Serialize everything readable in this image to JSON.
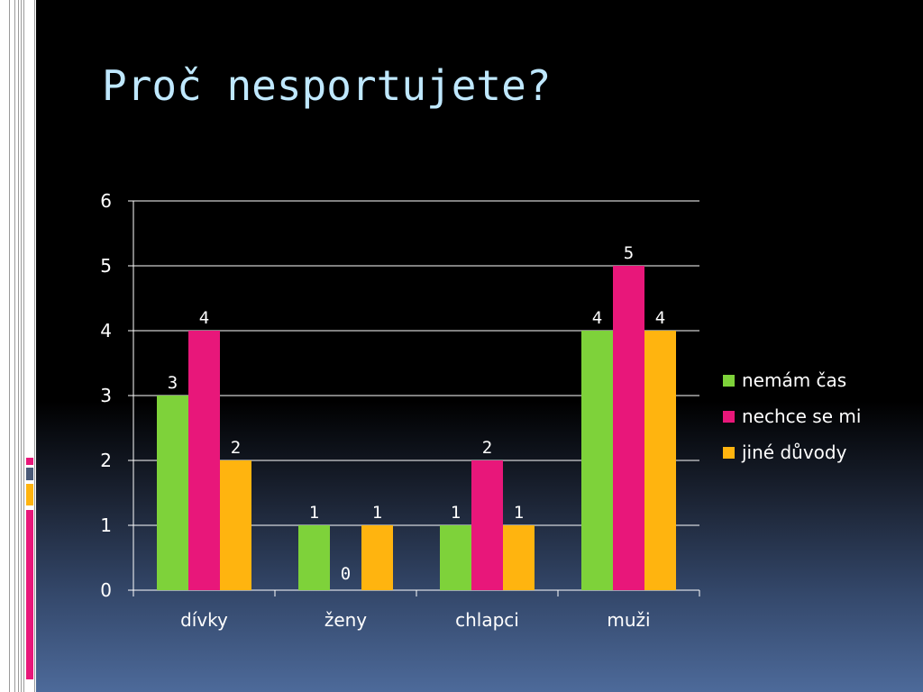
{
  "slide": {
    "title": "Proč nesportujete?"
  },
  "colors": {
    "title": "#bfe8ff",
    "series_green": "#7ed23a",
    "series_pink": "#e8177a",
    "series_orange": "#ffb40f",
    "grid": "#ffffff"
  },
  "chart_data": {
    "type": "bar",
    "title": "",
    "xlabel": "",
    "ylabel": "",
    "categories": [
      "dívky",
      "ženy",
      "chlapci",
      "muži"
    ],
    "series": [
      {
        "name": "nemám čas",
        "color": "#7ed23a",
        "values": [
          3,
          1,
          1,
          4
        ]
      },
      {
        "name": "nechce se mi",
        "color": "#e8177a",
        "values": [
          4,
          0,
          2,
          5
        ]
      },
      {
        "name": "jiné důvody",
        "color": "#ffb40f",
        "values": [
          2,
          1,
          1,
          4
        ]
      }
    ],
    "yticks": [
      "0",
      "1",
      "2",
      "3",
      "4",
      "5",
      "6"
    ],
    "ylim": [
      0,
      6
    ],
    "grid": true,
    "legend_position": "right"
  }
}
